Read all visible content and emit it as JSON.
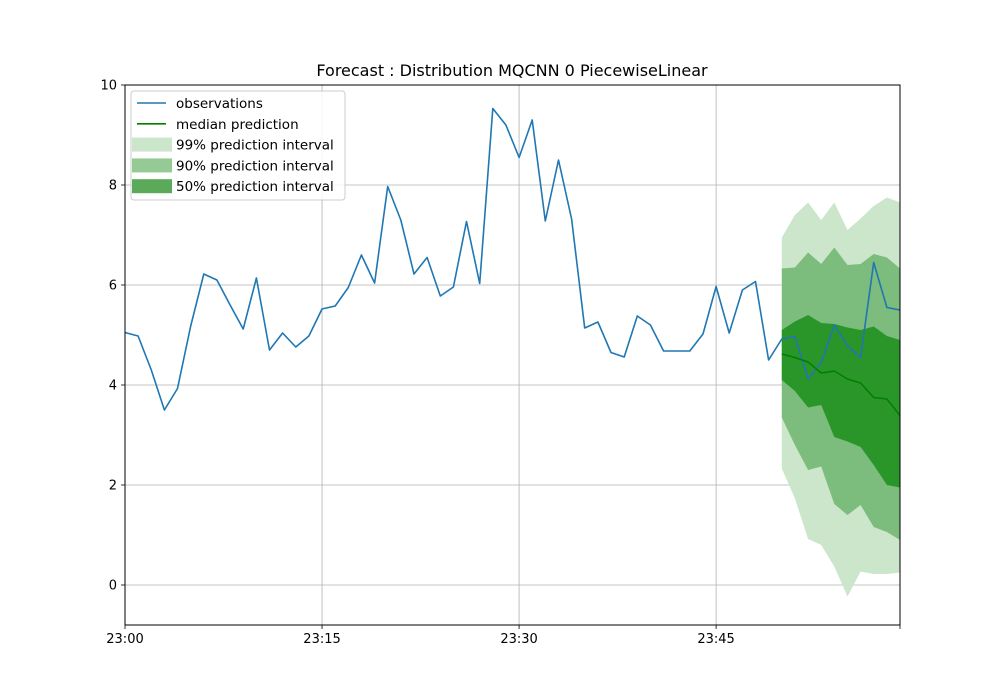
{
  "chart_data": {
    "type": "line",
    "title": "Forecast : Distribution MQCNN 0 PiecewiseLinear",
    "xlabel": "",
    "ylabel": "",
    "x_start": "23:00",
    "x_step_minutes": 1,
    "x_ticks": [
      "23:00",
      "23:15",
      "23:30",
      "23:45"
    ],
    "xlim_minutes": [
      0,
      59
    ],
    "ylim": [
      -0.8,
      10
    ],
    "y_ticks": [
      0,
      2,
      4,
      6,
      8,
      10
    ],
    "grid": true,
    "legend_position": "top-left",
    "colors": {
      "observations": "#1f77b4",
      "median": "#008000",
      "band_99": "#cbe6cb",
      "band_90": "#7cbc7c",
      "band_50": "#2a962a"
    },
    "legend": [
      {
        "label": "observations",
        "kind": "line",
        "color": "#1f77b4"
      },
      {
        "label": "median prediction",
        "kind": "line",
        "color": "#008000"
      },
      {
        "label": "99% prediction interval",
        "kind": "patch",
        "color": "#cbe6cb"
      },
      {
        "label": "90% prediction interval",
        "kind": "patch",
        "color": "#95ca95"
      },
      {
        "label": "50% prediction interval",
        "kind": "patch",
        "color": "#5aaa5a"
      }
    ],
    "observations": {
      "name": "observations",
      "x_minutes": [
        0,
        1,
        2,
        3,
        4,
        5,
        6,
        7,
        8,
        9,
        10,
        11,
        12,
        13,
        14,
        15,
        16,
        17,
        18,
        19,
        20,
        21,
        22,
        23,
        24,
        25,
        26,
        27,
        28,
        29,
        30,
        31,
        32,
        33,
        34,
        35,
        36,
        37,
        38,
        39,
        40,
        41,
        42,
        43,
        44,
        45,
        46,
        47,
        48,
        49,
        50,
        51,
        52,
        53,
        54,
        55,
        56,
        57,
        58,
        59
      ],
      "values": [
        5.05,
        4.98,
        4.3,
        3.5,
        3.93,
        5.18,
        6.22,
        6.1,
        5.6,
        5.12,
        6.14,
        4.7,
        5.04,
        4.76,
        4.98,
        5.52,
        5.58,
        5.95,
        6.6,
        6.04,
        7.97,
        7.3,
        6.22,
        6.55,
        5.78,
        5.96,
        7.27,
        6.03,
        9.53,
        9.2,
        8.55,
        9.3,
        7.28,
        8.5,
        7.32,
        5.14,
        5.26,
        4.65,
        4.56,
        5.38,
        5.2,
        4.68,
        4.68,
        4.68,
        5.02,
        5.97,
        5.04,
        5.9,
        6.07,
        4.5,
        4.92,
        4.97,
        4.12,
        4.45,
        5.2,
        4.78,
        4.55,
        6.45,
        5.55,
        5.5
      ]
    },
    "forecast": {
      "x_minutes": [
        50,
        51,
        52,
        53,
        54,
        55,
        56,
        57,
        58,
        59
      ],
      "median": [
        4.62,
        4.55,
        4.46,
        4.24,
        4.28,
        4.12,
        4.04,
        3.75,
        3.72,
        3.39
      ],
      "p50_low": [
        4.1,
        3.88,
        3.55,
        3.6,
        2.96,
        2.87,
        2.76,
        2.4,
        2.0,
        1.95
      ],
      "p50_high": [
        5.1,
        5.27,
        5.4,
        5.24,
        5.22,
        5.15,
        5.1,
        5.17,
        4.98,
        4.9
      ],
      "p90_low": [
        3.35,
        2.8,
        2.3,
        2.37,
        1.62,
        1.4,
        1.6,
        1.16,
        1.06,
        0.9
      ],
      "p90_high": [
        6.33,
        6.35,
        6.65,
        6.42,
        6.75,
        6.4,
        6.42,
        6.62,
        6.55,
        6.33
      ],
      "p99_low": [
        2.33,
        1.73,
        0.92,
        0.8,
        0.37,
        -0.23,
        0.27,
        0.22,
        0.22,
        0.25
      ],
      "p99_high": [
        6.95,
        7.4,
        7.65,
        7.3,
        7.65,
        7.1,
        7.33,
        7.58,
        7.75,
        7.65
      ]
    }
  }
}
